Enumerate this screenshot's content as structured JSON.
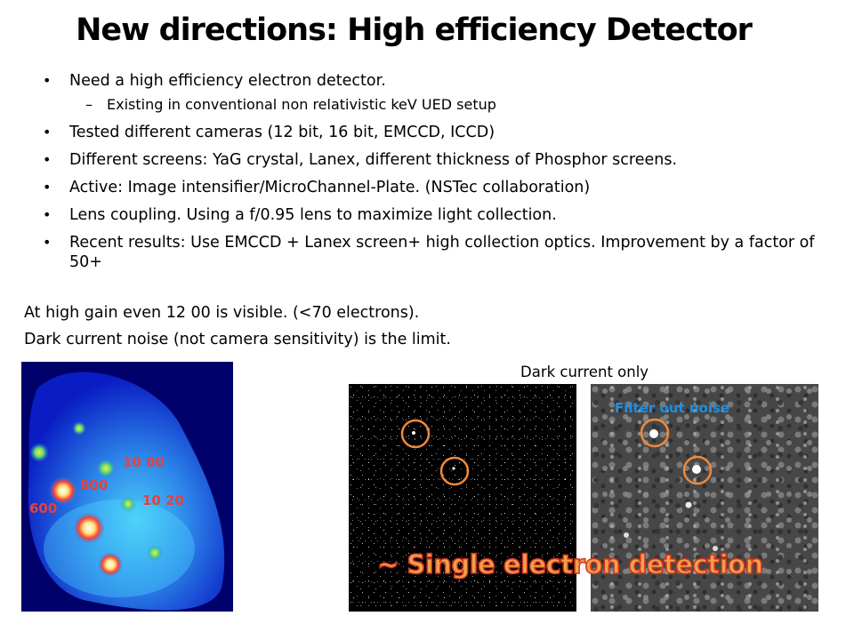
{
  "slide": {
    "title": "New directions: High efficiency Detector",
    "bullets": [
      {
        "bullet": "•",
        "text": "Need a high efficiency electron detector.",
        "level": 1
      },
      {
        "bullet": "–",
        "text": "Existing in conventional non relativistic keV UED setup",
        "level": 2
      },
      {
        "bullet": "•",
        "text": "Tested different cameras (12 bit, 16 bit, EMCCD, ICCD)",
        "level": 1
      },
      {
        "bullet": "•",
        "text": "Different screens: YaG crystal, Lanex, different thickness of Phosphor screens.",
        "level": 1
      },
      {
        "bullet": "•",
        "text": "Active:  Image intensifier/MicroChannel-Plate. (NSTec collaboration)",
        "level": 1
      },
      {
        "bullet": "•",
        "text": "Lens coupling.  Using a f/0.95 lens to maximize light collection.",
        "level": 1
      },
      {
        "bullet": "•",
        "text": "Recent results: Use EMCCD + Lanex screen+ high collection optics. Improvement by a factor of 50+",
        "level": 1
      }
    ],
    "notes": [
      "At high gain even 12 00 is visible. (<70 electrons).",
      "Dark current noise (not camera sensitivity) is the limit."
    ],
    "dark_current_caption": "Dark current only",
    "diffraction_labels": [
      "10 00",
      "800",
      "600",
      "10 20"
    ],
    "filter_label": "Filter out noise",
    "highlight": "~ Single electron detection",
    "colors": {
      "label_red": "#e8403a",
      "filter_blue": "#1f8fe0",
      "circle_orange": "#f08a3c",
      "highlight_fill": "#f4a04a"
    }
  }
}
